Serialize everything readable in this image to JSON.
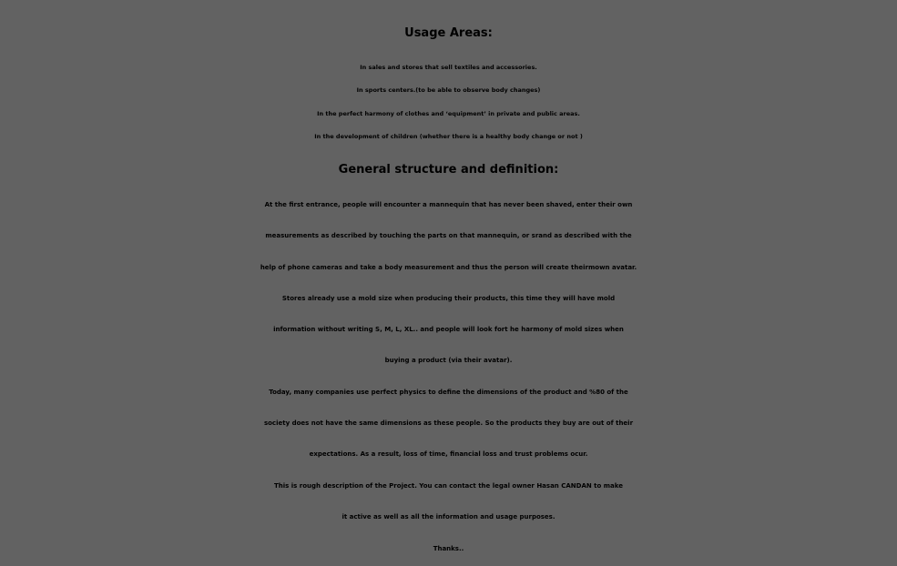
{
  "usage_areas": {
    "heading": "Usage Areas:",
    "items": [
      "In sales and stores that sell textiles and accessories.",
      "In sports centers.(to be able to observe body changes)",
      "In the perfect harmony of clothes and ‘equipment’ in private and public areas.",
      "In the development of children (whether there is a healthy body change or not )"
    ]
  },
  "structure": {
    "heading": "General structure and definition:",
    "lines": [
      "At the first entrance, people will encounter a mannequin that has never been shaved, enter their own",
      "measurements as described by touching the parts on that mannequin, or srand as described with the",
      "help of phone cameras and take a body measurement and thus the person will create theirmown avatar.",
      "Stores already use a mold size when producing their products, this time they will have mold",
      "information without writing S, M, L, XL.. and people will look fort he harmony of mold sizes when",
      "buying a product (via their avatar).",
      "Today, many companies use perfect physics to define the dimensions of the product and %80 of the",
      "society does not have the same dimensions as these people. So the products they buy are out of their",
      "expectations. As a result, loss of time, financial loss and trust problems ocur.",
      "This is rough description of the Project. You can contact the legal owner Hasan CANDAN to make",
      "it active as well as all the information and usage purposes."
    ]
  },
  "closing": {
    "thanks": "Thanks.."
  }
}
